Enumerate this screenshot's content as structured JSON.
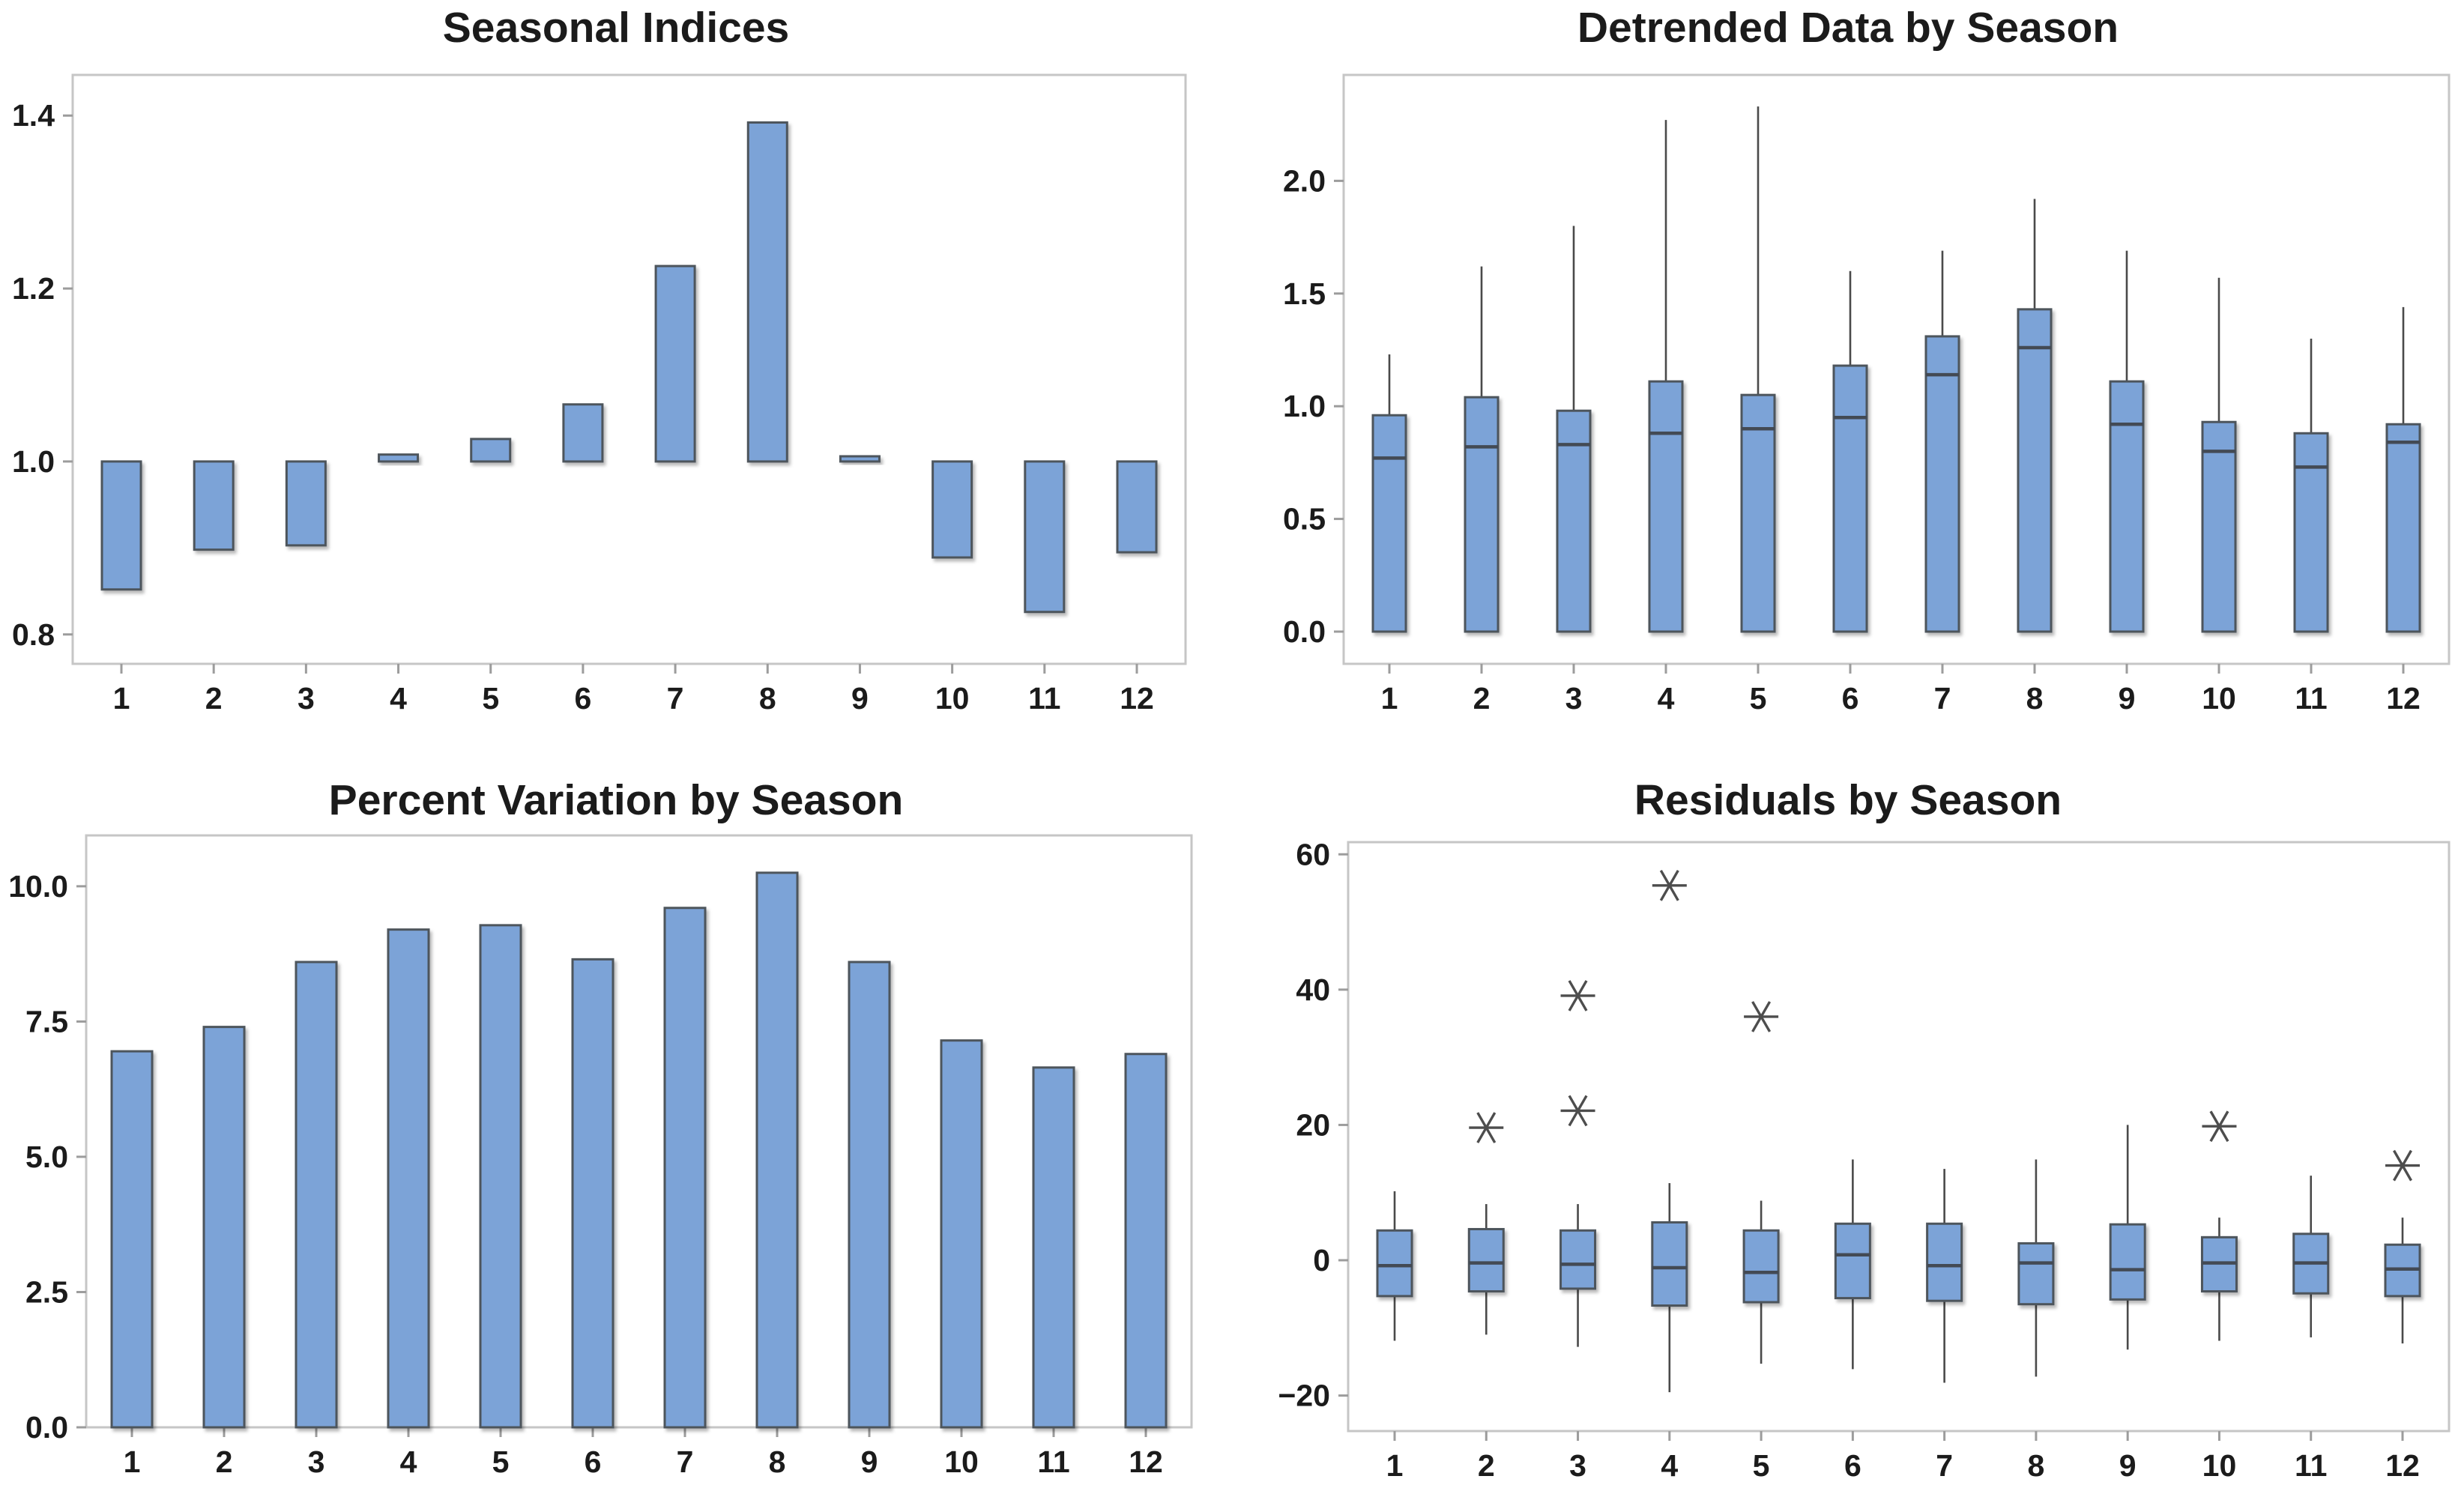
{
  "colors": {
    "bar_fill": "#7CA3D7",
    "bar_border": "#4E545C",
    "median_line": "#434A54",
    "whisker": "#4A4A4A",
    "outlier": "#4D4D4D",
    "frame": "#C6C6C6",
    "tick_mark": "#9C9C9C",
    "text": "#1B1B1B",
    "background": "#FFFFFF"
  },
  "chart_data": [
    {
      "type": "bar",
      "title": "Seasonal Indices",
      "xlabel": "",
      "ylabel": "",
      "grid": false,
      "legend": "none",
      "categories": [
        "1",
        "2",
        "3",
        "4",
        "5",
        "6",
        "7",
        "8",
        "9",
        "10",
        "11",
        "12"
      ],
      "values": [
        0.852,
        0.898,
        0.903,
        1.008,
        1.026,
        1.066,
        1.226,
        1.392,
        1.006,
        0.889,
        0.826,
        0.895
      ],
      "baseline": 1.0,
      "ylim": [
        0.766,
        1.447
      ],
      "yticks": [
        0.8,
        1.0,
        1.2,
        1.4
      ],
      "ytick_labels": [
        "0.8",
        "1.0",
        "1.2",
        "1.4"
      ]
    },
    {
      "type": "boxplot",
      "title": "Detrended Data by Season",
      "xlabel": "",
      "ylabel": "",
      "grid": false,
      "legend": "none",
      "categories": [
        "1",
        "2",
        "3",
        "4",
        "5",
        "6",
        "7",
        "8",
        "9",
        "10",
        "11",
        "12"
      ],
      "boxes": [
        {
          "lo": 0,
          "q1": 0,
          "median": 0.77,
          "q3": 0.96,
          "hi": 1.23,
          "outliers": []
        },
        {
          "lo": 0,
          "q1": 0,
          "median": 0.82,
          "q3": 1.04,
          "hi": 1.62,
          "outliers": []
        },
        {
          "lo": 0,
          "q1": 0,
          "median": 0.83,
          "q3": 0.98,
          "hi": 1.8,
          "outliers": []
        },
        {
          "lo": 0,
          "q1": 0,
          "median": 0.88,
          "q3": 1.11,
          "hi": 2.27,
          "outliers": []
        },
        {
          "lo": 0,
          "q1": 0,
          "median": 0.9,
          "q3": 1.05,
          "hi": 2.33,
          "outliers": []
        },
        {
          "lo": 0,
          "q1": 0,
          "median": 0.95,
          "q3": 1.18,
          "hi": 1.6,
          "outliers": []
        },
        {
          "lo": 0,
          "q1": 0,
          "median": 1.14,
          "q3": 1.31,
          "hi": 1.69,
          "outliers": []
        },
        {
          "lo": 0,
          "q1": 0,
          "median": 1.26,
          "q3": 1.43,
          "hi": 1.92,
          "outliers": []
        },
        {
          "lo": 0,
          "q1": 0,
          "median": 0.92,
          "q3": 1.11,
          "hi": 1.69,
          "outliers": []
        },
        {
          "lo": 0,
          "q1": 0,
          "median": 0.8,
          "q3": 0.93,
          "hi": 1.57,
          "outliers": []
        },
        {
          "lo": 0,
          "q1": 0,
          "median": 0.73,
          "q3": 0.88,
          "hi": 1.3,
          "outliers": []
        },
        {
          "lo": 0,
          "q1": 0,
          "median": 0.84,
          "q3": 0.92,
          "hi": 1.44,
          "outliers": []
        }
      ],
      "ylim": [
        -0.143,
        2.47
      ],
      "yticks": [
        0.0,
        0.5,
        1.0,
        1.5,
        2.0
      ],
      "ytick_labels": [
        "0.0",
        "0.5",
        "1.0",
        "1.5",
        "2.0"
      ]
    },
    {
      "type": "bar",
      "title": "Percent Variation by Season",
      "xlabel": "",
      "ylabel": "",
      "grid": false,
      "legend": "none",
      "categories": [
        "1",
        "2",
        "3",
        "4",
        "5",
        "6",
        "7",
        "8",
        "9",
        "10",
        "11",
        "12"
      ],
      "values": [
        6.95,
        7.4,
        8.6,
        9.2,
        9.28,
        8.65,
        9.6,
        10.25,
        8.6,
        7.15,
        6.65,
        6.9
      ],
      "baseline": 0,
      "ylim": [
        0,
        10.94
      ],
      "yticks": [
        0.0,
        2.5,
        5.0,
        7.5,
        10.0
      ],
      "ytick_labels": [
        "0.0",
        "2.5",
        "5.0",
        "7.5",
        "10.0"
      ]
    },
    {
      "type": "boxplot",
      "title": "Residuals by Season",
      "xlabel": "",
      "ylabel": "",
      "grid": false,
      "legend": "none",
      "categories": [
        "1",
        "2",
        "3",
        "4",
        "5",
        "6",
        "7",
        "8",
        "9",
        "10",
        "11",
        "12"
      ],
      "boxes": [
        {
          "lo": -11.9,
          "q1": -5.3,
          "median": -0.8,
          "q3": 4.4,
          "hi": 10.2,
          "outliers": []
        },
        {
          "lo": -11.0,
          "q1": -4.6,
          "median": -0.4,
          "q3": 4.6,
          "hi": 8.3,
          "outliers": [
            19.6
          ]
        },
        {
          "lo": -12.8,
          "q1": -4.2,
          "median": -0.6,
          "q3": 4.4,
          "hi": 8.3,
          "outliers": [
            22.1,
            39.1
          ]
        },
        {
          "lo": -19.5,
          "q1": -6.7,
          "median": -1.1,
          "q3": 5.6,
          "hi": 11.4,
          "outliers": [
            55.4
          ]
        },
        {
          "lo": -15.3,
          "q1": -6.2,
          "median": -1.8,
          "q3": 4.4,
          "hi": 8.8,
          "outliers": [
            36.0
          ]
        },
        {
          "lo": -16.1,
          "q1": -5.6,
          "median": 0.8,
          "q3": 5.4,
          "hi": 14.9,
          "outliers": []
        },
        {
          "lo": -18.1,
          "q1": -6.0,
          "median": -0.8,
          "q3": 5.4,
          "hi": 13.5,
          "outliers": []
        },
        {
          "lo": -17.2,
          "q1": -6.5,
          "median": -0.4,
          "q3": 2.5,
          "hi": 14.9,
          "outliers": []
        },
        {
          "lo": -13.2,
          "q1": -5.8,
          "median": -1.4,
          "q3": 5.3,
          "hi": 20.0,
          "outliers": []
        },
        {
          "lo": -11.9,
          "q1": -4.6,
          "median": -0.4,
          "q3": 3.4,
          "hi": 6.3,
          "outliers": [
            19.8
          ]
        },
        {
          "lo": -11.4,
          "q1": -4.9,
          "median": -0.4,
          "q3": 3.9,
          "hi": 12.5,
          "outliers": []
        },
        {
          "lo": -12.3,
          "q1": -5.3,
          "median": -1.3,
          "q3": 2.3,
          "hi": 6.3,
          "outliers": [
            14.0
          ]
        }
      ],
      "ylim": [
        -25.25,
        61.8
      ],
      "yticks": [
        -20,
        0,
        20,
        40,
        60
      ],
      "ytick_labels": [
        "−20",
        "0",
        "20",
        "40",
        "60"
      ]
    }
  ]
}
